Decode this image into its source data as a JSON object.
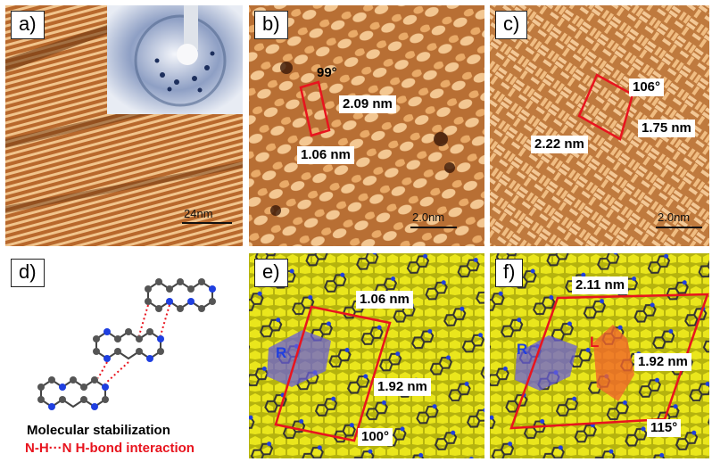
{
  "panels": {
    "a": {
      "label": "a)",
      "scale": "24nm"
    },
    "b": {
      "label": "b)",
      "angle": "99°",
      "len1": "2.09 nm",
      "len2": "1.06 nm",
      "scale": "2.0nm"
    },
    "c": {
      "label": "c)",
      "angle": "106°",
      "len1": "2.22 nm",
      "len2": "1.75 nm",
      "scale": "2.0nm"
    },
    "d": {
      "label": "d)",
      "caption1": "Molecular stabilization",
      "caption2": "N-H···N H-bond interaction"
    },
    "e": {
      "label": "e)",
      "len1": "1.06 nm",
      "len2": "1.92 nm",
      "angle": "100°",
      "mol": "R"
    },
    "f": {
      "label": "f)",
      "len1": "2.11 nm",
      "len2": "1.92 nm",
      "angle": "115°",
      "mol_r": "R",
      "mol_l": "L"
    }
  },
  "colors": {
    "stm": "#c97a3a",
    "unit_cell": "#e8141e",
    "hbond": "#e8141e",
    "substrate": "#e6e21a"
  }
}
